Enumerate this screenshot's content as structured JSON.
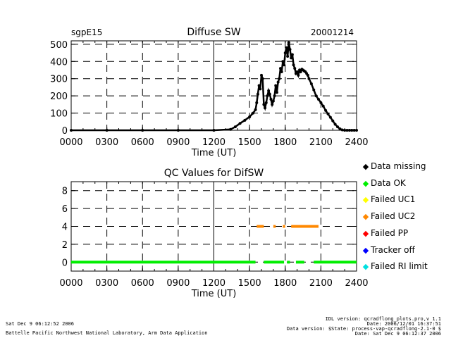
{
  "site": "sgpE15",
  "date": "20001214",
  "chart_data": [
    {
      "type": "scatter",
      "title": "Diffuse SW",
      "xlabel": "Time (UT)",
      "ylabel": "",
      "xlim": [
        0,
        2400
      ],
      "ylim": [
        0,
        520
      ],
      "x_ticks": [
        "0000",
        "0300",
        "0600",
        "0900",
        "1200",
        "1500",
        "1800",
        "2100",
        "2400"
      ],
      "y_ticks": [
        "0",
        "100",
        "200",
        "300",
        "400",
        "500"
      ],
      "grid": true,
      "series": [
        {
          "color": "#000000",
          "x": [
            0,
            300,
            600,
            900,
            1200,
            1340,
            1380,
            1420,
            1460,
            1500,
            1530,
            1550,
            1560,
            1570,
            1580,
            1590,
            1600,
            1610,
            1620,
            1630,
            1640,
            1650,
            1660,
            1670,
            1680,
            1690,
            1700,
            1710,
            1720,
            1730,
            1740,
            1750,
            1760,
            1770,
            1780,
            1790,
            1800,
            1810,
            1820,
            1830,
            1840,
            1850,
            1860,
            1870,
            1880,
            1890,
            1900,
            1910,
            1920,
            1930,
            1940,
            1950,
            1960,
            1970,
            1980,
            1990,
            2000,
            2020,
            2040,
            2060,
            2080,
            2100,
            2120,
            2140,
            2160,
            2180,
            2200,
            2220,
            2240,
            2260,
            2280,
            2300,
            2320,
            2340,
            2360,
            2380,
            2400
          ],
          "y": [
            0,
            0,
            0,
            0,
            0,
            5,
            20,
            40,
            58,
            78,
            100,
            120,
            160,
            210,
            260,
            240,
            320,
            300,
            150,
            130,
            160,
            200,
            230,
            210,
            180,
            150,
            170,
            200,
            260,
            220,
            280,
            300,
            360,
            340,
            400,
            380,
            450,
            480,
            430,
            510,
            470,
            420,
            440,
            380,
            360,
            330,
            340,
            320,
            350,
            340,
            355,
            350,
            345,
            340,
            330,
            320,
            300,
            270,
            235,
            200,
            180,
            160,
            140,
            115,
            95,
            75,
            55,
            35,
            20,
            8,
            2,
            0,
            0,
            0,
            0,
            0,
            0
          ]
        }
      ]
    },
    {
      "type": "scatter",
      "title": "QC Values for DifSW",
      "xlabel": "Time (UT)",
      "ylabel": "",
      "xlim": [
        0,
        2400
      ],
      "ylim": [
        -1,
        9
      ],
      "x_ticks": [
        "0000",
        "0300",
        "0600",
        "0900",
        "1200",
        "1500",
        "1800",
        "2100",
        "2400"
      ],
      "y_ticks": [
        "0",
        "2",
        "4",
        "6",
        "8"
      ],
      "grid": true,
      "segments": [
        {
          "name": "Data OK",
          "y": 0,
          "color": "#00ee00",
          "ranges": [
            [
              0,
              1550
            ],
            [
              1620,
              1790
            ],
            [
              1815,
              1840
            ],
            [
              1890,
              1960
            ],
            [
              2040,
              2400
            ]
          ]
        },
        {
          "name": "Failed UC2",
          "y": 4,
          "color": "#ff8800",
          "ranges": [
            [
              1560,
              1620
            ],
            [
              1700,
              1720
            ],
            [
              1780,
              1800
            ],
            [
              1850,
              2080
            ]
          ]
        }
      ]
    }
  ],
  "legend": [
    {
      "label": "Data missing",
      "color": "#000000",
      "symbol": "◆"
    },
    {
      "label": "Data OK",
      "color": "#00ee00",
      "symbol": "◆"
    },
    {
      "label": "Failed UC1",
      "color": "#ffff00",
      "symbol": "◆"
    },
    {
      "label": "Failed UC2",
      "color": "#ff8800",
      "symbol": "◆"
    },
    {
      "label": "Failed PP",
      "color": "#ff0000",
      "symbol": "◆"
    },
    {
      "label": "Tracker off",
      "color": "#0000ff",
      "symbol": "◆"
    },
    {
      "label": "Failed RI limit",
      "color": "#00e0e0",
      "symbol": "◆"
    }
  ],
  "footer": {
    "left_date": "Sat Dec  9 06:12:52 2006",
    "left_org": "Battelle Pacific Northwest National Laboratory, Arm Data Application",
    "right_line1": "IDL version: qcradflong_plots.pro,v 1.1",
    "right_line2": "Date: 2006/12/01 16:37:51",
    "right_line3": "Data version: $State: process-vap-qcradflong-2.1-0 $",
    "right_line4": "Date: Sat Dec  9 06:12:37 2006"
  }
}
